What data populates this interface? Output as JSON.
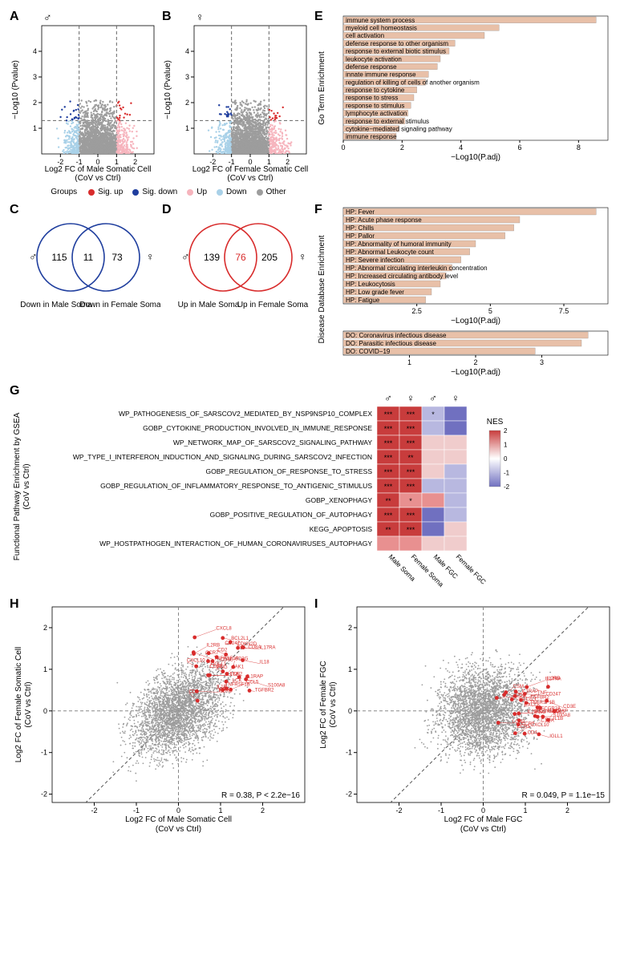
{
  "colors": {
    "sig_up": "#d82c2c",
    "sig_down": "#1f3e9e",
    "up": "#f6b4bd",
    "down": "#a9d1e8",
    "other": "#9d9d9d",
    "bar_fill": "#e8c0a8",
    "heat_high": "#c83c3c",
    "heat_mid_high": "#e89090",
    "heat_neutral": "#f5f5f5",
    "heat_mid_low": "#b8b8e0",
    "heat_low": "#7070c0",
    "grid": "#cccccc",
    "axis": "#000000",
    "male_symbol": "#000000"
  },
  "panelA": {
    "label": "A",
    "symbol": "♂",
    "xlabel": "Log2 FC of Male Somatic Cell\n(CoV vs Ctrl)",
    "ylabel": "−Log10 (Pvalue)",
    "xlim": [
      -3,
      3
    ],
    "ylim": [
      0,
      5
    ],
    "xticks": [
      -2,
      -1,
      0,
      1,
      2
    ],
    "yticks": [
      1,
      2,
      3,
      4
    ],
    "vlines": [
      -1,
      1
    ],
    "hline": 1.3,
    "n_points": 2400
  },
  "panelB": {
    "label": "B",
    "symbol": "♀",
    "xlabel": "Log2 FC of Female Somatic Cell\n(CoV vs Ctrl)",
    "ylabel": "−Log10 (Pvalue)",
    "xlim": [
      -3,
      3
    ],
    "ylim": [
      0,
      5
    ],
    "xticks": [
      -2,
      -1,
      0,
      1,
      2
    ],
    "yticks": [
      1,
      2,
      3,
      4
    ],
    "vlines": [
      -1,
      1
    ],
    "hline": 1.3,
    "n_points": 2400
  },
  "legend_groups": {
    "title": "Groups",
    "items": [
      {
        "label": "Sig. up",
        "color": "#d82c2c"
      },
      {
        "label": "Sig. down",
        "color": "#1f3e9e"
      },
      {
        "label": "Up",
        "color": "#f6b4bd"
      },
      {
        "label": "Down",
        "color": "#a9d1e8"
      },
      {
        "label": "Other",
        "color": "#9d9d9d"
      }
    ]
  },
  "panelC": {
    "label": "C",
    "left_symbol": "♂",
    "right_symbol": "♀",
    "left_n": 115,
    "overlap_n": 11,
    "right_n": 73,
    "left_caption": "Down in Male Soma",
    "right_caption": "Down in Female Soma",
    "circle_color": "#1f3e9e"
  },
  "panelD": {
    "label": "D",
    "left_symbol": "♂",
    "right_symbol": "♀",
    "left_n": 139,
    "overlap_n": 76,
    "right_n": 205,
    "left_caption": "Up in Male Soma",
    "right_caption": "Up in Female Soma",
    "circle_color": "#d82c2c",
    "overlap_color": "#d82c2c"
  },
  "panelE": {
    "label": "E",
    "ylabel": "Go Term Enrichment",
    "xlabel": "−Log10(P.adj)",
    "xlim": [
      0,
      9
    ],
    "xticks": [
      0,
      2,
      4,
      6,
      8
    ],
    "bars": [
      {
        "term": "immune system process",
        "val": 8.6
      },
      {
        "term": "myeloid cell homeostasis",
        "val": 5.3
      },
      {
        "term": "cell activation",
        "val": 4.8
      },
      {
        "term": "defense response to other organism",
        "val": 3.8
      },
      {
        "term": "response to external biotic stimulus",
        "val": 3.6
      },
      {
        "term": "leukocyte activation",
        "val": 3.3
      },
      {
        "term": "defense response",
        "val": 3.2
      },
      {
        "term": "innate immune response",
        "val": 2.9
      },
      {
        "term": "regulation of killing of cells of another organism",
        "val": 2.8
      },
      {
        "term": "response to cytokine",
        "val": 2.5
      },
      {
        "term": "response to stress",
        "val": 2.4
      },
      {
        "term": "response to stimulus",
        "val": 2.3
      },
      {
        "term": "lymphocyte activation",
        "val": 2.2
      },
      {
        "term": "response to external stimulus",
        "val": 2.1
      },
      {
        "term": "cytokine−mediated signaling pathway",
        "val": 1.9
      },
      {
        "term": "immune response",
        "val": 1.8
      }
    ]
  },
  "panelF": {
    "label": "F",
    "ylabel": "Disease Database Enrichment",
    "xlabel_top": "−Log10(P.adj)",
    "xlabel_bot": "−Log10(P.adj)",
    "top": {
      "xlim": [
        0,
        9
      ],
      "xticks": [
        2.5,
        5.0,
        7.5
      ],
      "bars": [
        {
          "term": "HP: Fever",
          "val": 8.6
        },
        {
          "term": "HP: Acute phase response",
          "val": 6.0
        },
        {
          "term": "HP: Chills",
          "val": 5.8
        },
        {
          "term": "HP: Pallor",
          "val": 5.5
        },
        {
          "term": "HP: Abnormality of humoral immunity",
          "val": 4.5
        },
        {
          "term": "HP: Abnormal Leukocyte count",
          "val": 4.3
        },
        {
          "term": "HP: Severe infection",
          "val": 4.0
        },
        {
          "term": "HP: Abnormal circulating interleukin concentration",
          "val": 3.7
        },
        {
          "term": "HP: Increased circulating antibody level",
          "val": 3.5
        },
        {
          "term": "HP: Leukocytosis",
          "val": 3.3
        },
        {
          "term": "HP: Low grade fever",
          "val": 3.0
        },
        {
          "term": "HP: Fatigue",
          "val": 2.8
        }
      ]
    },
    "bot": {
      "xlim": [
        0,
        4
      ],
      "xticks": [
        1,
        2,
        3
      ],
      "bars": [
        {
          "term": "DO: Coronavirus infectious disease",
          "val": 3.7
        },
        {
          "term": "DO: Parasitic infectious disease",
          "val": 3.6
        },
        {
          "term": "DO: COVID−19",
          "val": 2.9
        }
      ]
    }
  },
  "panelG": {
    "label": "G",
    "ylabel": "Functional Pathway Enrichment by GSEA\n(CoV vs Ctrl)",
    "col_symbols": [
      "♂",
      "♀",
      "♂",
      "♀"
    ],
    "cols": [
      "Male Soma",
      "Female Soma",
      "Male FGC",
      "Female FGC"
    ],
    "legend_title": "NES",
    "legend_ticks": [
      2,
      1,
      0,
      -1,
      -2
    ],
    "rows": [
      {
        "term": "WP_PATHOGENESIS_OF_SARSCOV2_MEDIATED_BY_NSP9NSP10_COMPLEX",
        "vals": [
          2.0,
          1.9,
          -0.6,
          -1.4
        ],
        "sig": [
          "***",
          "***",
          "*",
          ""
        ]
      },
      {
        "term": "GOBP_CYTOKINE_PRODUCTION_INVOLVED_IN_IMMUNE_RESPONSE",
        "vals": [
          1.9,
          2.0,
          -0.3,
          -0.8
        ],
        "sig": [
          "***",
          "***",
          "",
          ""
        ]
      },
      {
        "term": "WP_NETWORK_MAP_OF_SARSCOV2_SIGNALING_PATHWAY",
        "vals": [
          2.0,
          1.9,
          0.7,
          0.2
        ],
        "sig": [
          "***",
          "***",
          "",
          ""
        ]
      },
      {
        "term": "WP_TYPE_I_INTERFERON_INDUCTION_AND_SIGNALING_DURING_SARSCOV2_INFECTION",
        "vals": [
          1.8,
          1.5,
          0.5,
          0.5
        ],
        "sig": [
          "***",
          "**",
          "",
          ""
        ]
      },
      {
        "term": "GOBP_REGULATION_OF_RESPONSE_TO_STRESS",
        "vals": [
          1.8,
          1.8,
          0.4,
          -0.6
        ],
        "sig": [
          "***",
          "***",
          "",
          ""
        ]
      },
      {
        "term": "GOBP_REGULATION_OF_INFLAMMATORY_RESPONSE_TO_ANTIGENIC_STIMULUS",
        "vals": [
          1.9,
          1.9,
          -0.7,
          -0.2
        ],
        "sig": [
          "***",
          "***",
          "",
          ""
        ]
      },
      {
        "term": "GOBP_XENOPHAGY",
        "vals": [
          1.5,
          1.3,
          0.9,
          -0.7
        ],
        "sig": [
          "**",
          "*",
          "",
          ""
        ]
      },
      {
        "term": "GOBP_POSITIVE_REGULATION_OF_AUTOPHAGY",
        "vals": [
          1.8,
          1.9,
          -0.8,
          -0.3
        ],
        "sig": [
          "***",
          "***",
          "",
          ""
        ]
      },
      {
        "term": "KEGG_APOPTOSIS",
        "vals": [
          1.5,
          1.9,
          -0.8,
          0.4
        ],
        "sig": [
          "**",
          "***",
          "",
          ""
        ]
      },
      {
        "term": "WP_HOSTPATHOGEN_INTERACTION_OF_HUMAN_CORONAVIRUSES_AUTOPHAGY",
        "vals": [
          1.3,
          1.4,
          0.7,
          0.5
        ],
        "sig": [
          "",
          "",
          "",
          ""
        ]
      }
    ]
  },
  "panelH": {
    "label": "H",
    "xlabel": "Log2 FC of Male Somatic Cell\n(CoV vs Ctrl)",
    "ylabel": "Log2 FC of Female Somatic Cell\n(CoV vs Ctrl)",
    "xlim": [
      -3,
      3
    ],
    "ylim": [
      -2.2,
      2.5
    ],
    "xticks": [
      -2,
      -1,
      0,
      1,
      2
    ],
    "yticks": [
      -2,
      -1,
      0,
      1,
      2
    ],
    "stat": "R = 0.38, P < 2.2e−16",
    "genes": [
      "S100A8",
      "IL1B",
      "BCL2L1",
      "CXCL8",
      "IL2RG",
      "LCN2",
      "IFNG",
      "CDKN2D",
      "LCK",
      "CD247",
      "IL1RAP",
      "CCR7",
      "CCL5",
      "CD3E",
      "IL2RB",
      "CD5",
      "TGFBR2",
      "TNFRSF14",
      "CD8A",
      "CD2",
      "TNFRSF1B",
      "CD4",
      "IL17RA",
      "IGLL1",
      "IL18",
      "CXCL10",
      "CD8B",
      "JAK1",
      "TNF",
      "CD3G"
    ],
    "n_points": 3200
  },
  "panelI": {
    "label": "I",
    "xlabel": "Log2 FC of Male FGC\n(CoV vs Ctrl)",
    "ylabel": "Log2 FC of Female FGC\n(CoV vs Ctrl)",
    "xlim": [
      -3,
      3
    ],
    "ylim": [
      -2.2,
      2.5
    ],
    "xticks": [
      -2,
      -1,
      0,
      1,
      2
    ],
    "yticks": [
      -2,
      -1,
      0,
      1,
      2
    ],
    "stat": "R = 0.049, P = 1.1e−15",
    "genes": [
      "CDKN2D",
      "LCN2",
      "CD4",
      "JAK1",
      "CCR5",
      "TGFBR2",
      "CD247",
      "IL1RAP",
      "TNFRSF1B",
      "S100A8",
      "CD2",
      "CXCL10",
      "IL18RAP",
      "CD3E",
      "IGLL1",
      "CXCL8",
      "IFNG",
      "CSM",
      "IL1B",
      "FCGR2A",
      "C1QA",
      "BCL2L1",
      "IL17RA",
      "IL2RB",
      "CCR7",
      "IL2RG",
      "TNF"
    ],
    "n_points": 3200
  }
}
